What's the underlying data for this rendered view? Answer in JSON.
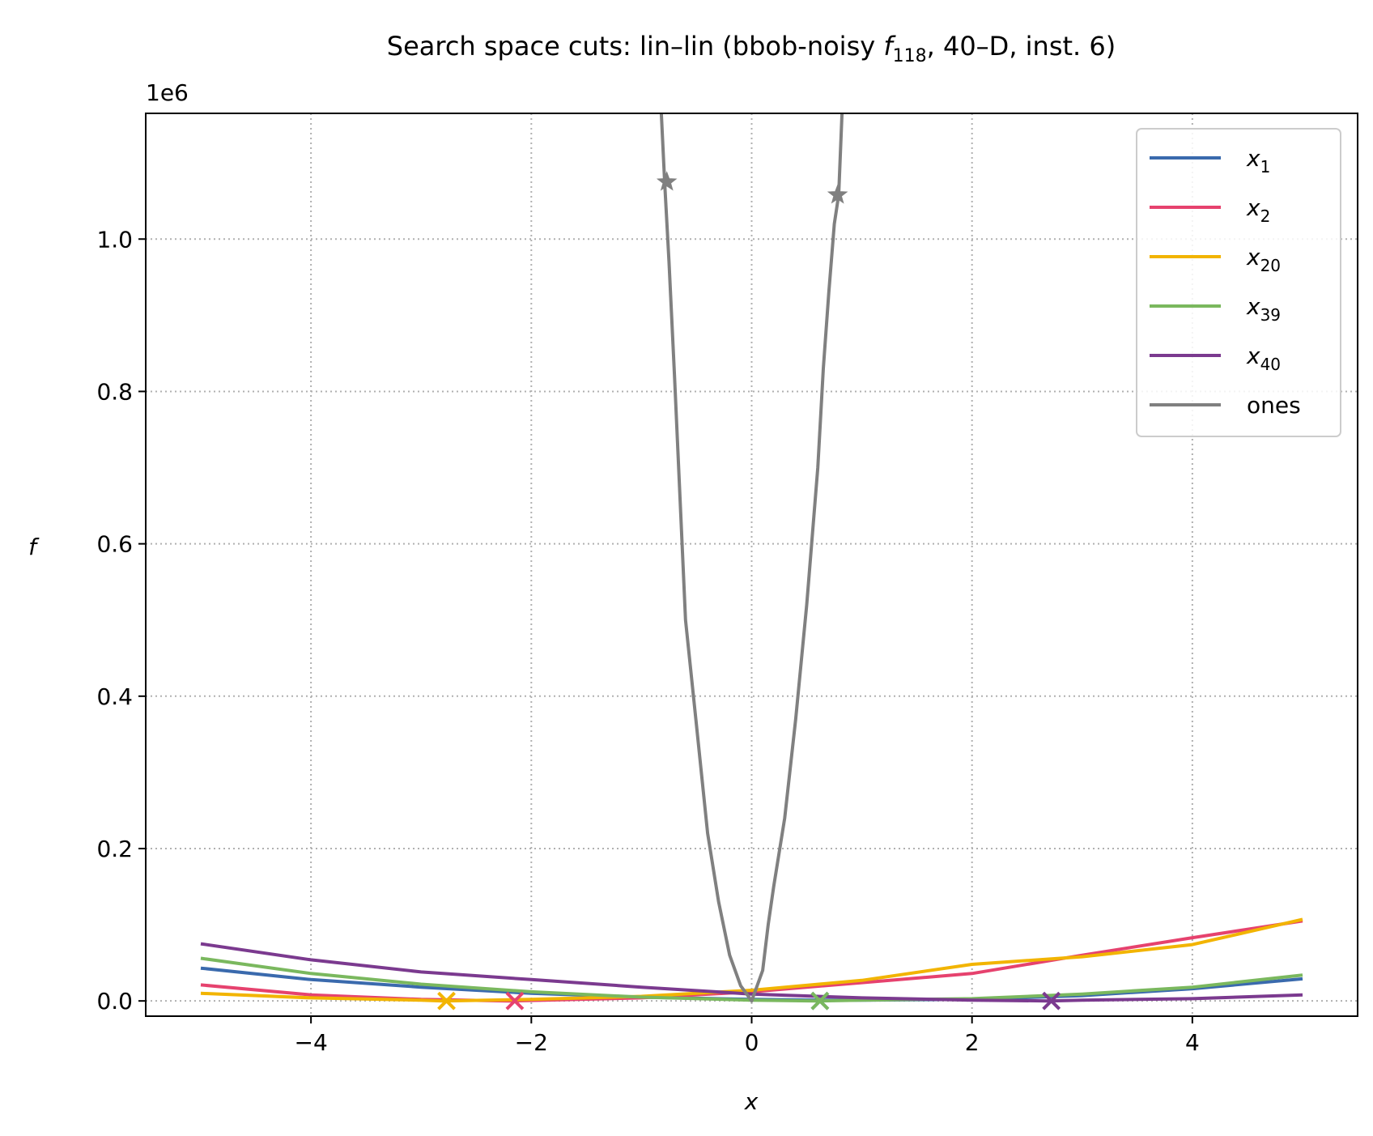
{
  "chart_data": {
    "type": "line",
    "title": "Search space cuts: lin–lin (bbob-noisy f118, 40–D, inst. 6)",
    "title_parts": {
      "prefix": "Search space cuts: lin–lin (bbob-noisy ",
      "func": "f",
      "func_sub": "118",
      "suffix": ", 40–D, inst. 6)"
    },
    "xlabel": "x",
    "ylabel": "f",
    "y_offset_label": "1e6",
    "xlim": [
      -5.5,
      5.5
    ],
    "ylim": [
      -0.02,
      1.165
    ],
    "x_ticks": [
      -4,
      -2,
      0,
      2,
      4
    ],
    "x_tick_labels": [
      "−4",
      "−2",
      "0",
      "2",
      "4"
    ],
    "y_ticks": [
      0.0,
      0.2,
      0.4,
      0.6,
      0.8,
      1.0
    ],
    "y_tick_labels": [
      "0.0",
      "0.2",
      "0.4",
      "0.6",
      "0.8",
      "1.0"
    ],
    "grid": true,
    "legend_position": "top-right",
    "series": [
      {
        "name": "x1",
        "label_base": "x",
        "label_sub": "1",
        "color": "#3a6aad",
        "x": [
          -5,
          -4,
          -3,
          -2,
          -1,
          0,
          0.6,
          1,
          2,
          3,
          4,
          5
        ],
        "y": [
          0.043,
          0.028,
          0.018,
          0.01,
          0.005,
          0.002,
          0.001,
          0.001,
          0.002,
          0.007,
          0.016,
          0.029
        ],
        "marker": {
          "x": 0.62,
          "y": 0.0,
          "shape": "x"
        }
      },
      {
        "name": "x2",
        "label_base": "x",
        "label_sub": "2",
        "color": "#e6426e",
        "x": [
          -5,
          -4,
          -3,
          -2.2,
          -1,
          0,
          1,
          2,
          3,
          4,
          5
        ],
        "y": [
          0.021,
          0.008,
          0.002,
          0.0,
          0.004,
          0.012,
          0.024,
          0.036,
          0.06,
          0.083,
          0.105
        ],
        "marker": {
          "x": -2.15,
          "y": 0.0,
          "shape": "x"
        }
      },
      {
        "name": "x20",
        "label_base": "x",
        "label_sub": "20",
        "color": "#f2b400",
        "x": [
          -5,
          -4,
          -3,
          -2.8,
          -2,
          -1,
          0,
          1,
          2,
          3,
          4,
          5
        ],
        "y": [
          0.01,
          0.004,
          0.001,
          0.0,
          0.002,
          0.006,
          0.014,
          0.027,
          0.048,
          0.058,
          0.074,
          0.107
        ],
        "marker": {
          "x": -2.77,
          "y": 0.0,
          "shape": "x"
        }
      },
      {
        "name": "x39",
        "label_base": "x",
        "label_sub": "39",
        "color": "#7ab85e",
        "x": [
          -5,
          -4,
          -3,
          -2,
          -1,
          0,
          0.6,
          1,
          2,
          3,
          4,
          5
        ],
        "y": [
          0.056,
          0.036,
          0.022,
          0.012,
          0.005,
          0.001,
          0.0,
          0.001,
          0.003,
          0.009,
          0.018,
          0.034
        ],
        "marker": {
          "x": 0.62,
          "y": 0.0,
          "shape": "x"
        }
      },
      {
        "name": "x40",
        "label_base": "x",
        "label_sub": "40",
        "color": "#7b3a8f",
        "x": [
          -5,
          -4,
          -3,
          -2,
          -1,
          0,
          1,
          2,
          2.7,
          3,
          4,
          5
        ],
        "y": [
          0.075,
          0.054,
          0.038,
          0.028,
          0.018,
          0.009,
          0.004,
          0.001,
          0.0,
          0.001,
          0.003,
          0.008
        ],
        "marker": {
          "x": 2.72,
          "y": 0.0,
          "shape": "x"
        }
      },
      {
        "name": "ones",
        "label_base": "ones",
        "label_sub": "",
        "color": "#808080",
        "x": [
          -0.82,
          -0.79,
          -0.75,
          -0.7,
          -0.65,
          -0.6,
          -0.5,
          -0.4,
          -0.3,
          -0.2,
          -0.1,
          0,
          0.1,
          0.15,
          0.2,
          0.3,
          0.4,
          0.5,
          0.6,
          0.65,
          0.7,
          0.75,
          0.79,
          0.82
        ],
        "y": [
          1.165,
          1.075,
          0.97,
          0.82,
          0.66,
          0.5,
          0.36,
          0.22,
          0.13,
          0.06,
          0.02,
          0.0,
          0.04,
          0.1,
          0.15,
          0.24,
          0.37,
          0.52,
          0.7,
          0.83,
          0.93,
          1.02,
          1.058,
          1.165
        ],
        "marker_points": [
          {
            "x": -0.77,
            "y": 1.075,
            "shape": "star"
          },
          {
            "x": 0.78,
            "y": 1.058,
            "shape": "star"
          }
        ]
      }
    ]
  }
}
